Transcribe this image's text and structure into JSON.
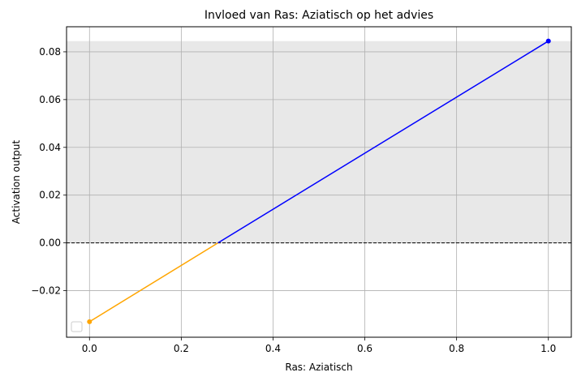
{
  "chart_data": {
    "type": "line",
    "title": "Invloed van Ras: Aziatisch op het advies",
    "xlabel": "Ras: Aziatisch",
    "ylabel": "Activation output",
    "xlim": [
      -0.05,
      1.05
    ],
    "ylim": [
      -0.0395,
      0.0905
    ],
    "x_ticks": [
      0.0,
      0.2,
      0.4,
      0.6,
      0.8,
      1.0
    ],
    "x_tick_labels": [
      "0.0",
      "0.2",
      "0.4",
      "0.6",
      "0.8",
      "1.0"
    ],
    "y_ticks": [
      -0.02,
      0.0,
      0.02,
      0.04,
      0.06,
      0.08
    ],
    "y_tick_labels": [
      "−0.02",
      "0.00",
      "0.02",
      "0.04",
      "0.06",
      "0.08"
    ],
    "grid": true,
    "series": [
      {
        "x": [
          0.0,
          0.28
        ],
        "y": [
          -0.033,
          0.0
        ],
        "color": "#ffa500",
        "markers": [
          {
            "x": 0.0,
            "y": -0.033
          }
        ]
      },
      {
        "x": [
          0.28,
          1.0
        ],
        "y": [
          0.0,
          0.0845
        ],
        "color": "#0000ff",
        "markers": [
          {
            "x": 1.0,
            "y": 0.0845
          }
        ]
      }
    ],
    "reference_line": {
      "y": 0.0,
      "style": "dashed",
      "color": "#000000"
    },
    "shaded_region": {
      "y_from": 0.0,
      "y_to": 0.0845,
      "color": "#e8e8e8"
    },
    "legend": {
      "position": "lower-left",
      "entries": []
    }
  }
}
